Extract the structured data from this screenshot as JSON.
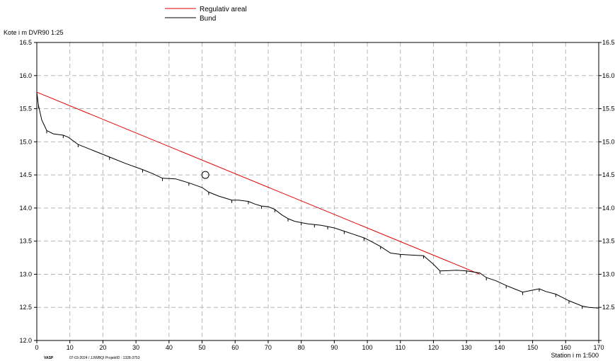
{
  "chart_data": {
    "type": "line",
    "title": "",
    "ylabel": "Kote i m DVR90 1:25",
    "xlabel": "Station i m  1:500",
    "xlim": [
      0,
      170
    ],
    "ylim": [
      12.0,
      16.5
    ],
    "x_ticks": [
      0,
      10,
      20,
      30,
      40,
      50,
      60,
      70,
      80,
      90,
      100,
      110,
      120,
      130,
      140,
      150,
      160,
      170
    ],
    "x_tick_labels": [
      "0",
      "10",
      "20",
      "30",
      "40",
      "50",
      "60",
      "70",
      "80",
      "90",
      "100",
      "110",
      "120",
      "130",
      "140",
      "150",
      "160",
      "170"
    ],
    "y_ticks": [
      12.0,
      12.5,
      13.0,
      13.5,
      14.0,
      14.5,
      15.0,
      15.5,
      16.0,
      16.5
    ],
    "y_tick_labels": [
      "12.0",
      "12.5",
      "13.0",
      "13.5",
      "14.0",
      "14.5",
      "15.0",
      "15.5",
      "16.0",
      "16.5"
    ],
    "y_tick_labels_right": [
      "12.5",
      "13.0",
      "13.5",
      "14.0",
      "14.5",
      "15.0",
      "15.5",
      "16.0",
      "16.5"
    ],
    "grid": true,
    "legend_position": "top-center",
    "series": [
      {
        "name": "Regulativ areal",
        "color": "#e00000",
        "x": [
          0,
          134
        ],
        "y": [
          15.75,
          13.0
        ]
      },
      {
        "name": "Bund",
        "color": "#000000",
        "x": [
          0,
          0.5,
          1.5,
          3,
          5,
          8,
          9.5,
          12.5,
          17,
          22,
          27,
          32,
          35,
          38,
          42,
          46,
          50,
          52,
          55,
          59,
          61,
          64,
          66,
          68,
          70,
          72,
          74,
          76,
          78,
          80,
          82,
          84,
          86,
          88,
          90,
          93,
          96,
          99,
          101,
          104,
          107,
          110,
          113,
          117,
          120,
          122,
          127,
          130,
          134,
          136,
          139,
          142,
          145,
          147,
          150,
          152,
          154,
          157,
          159,
          161,
          163,
          165,
          167,
          170
        ],
        "y": [
          15.75,
          15.55,
          15.33,
          15.17,
          15.12,
          15.1,
          15.07,
          14.96,
          14.87,
          14.77,
          14.67,
          14.58,
          14.52,
          14.45,
          14.44,
          14.38,
          14.31,
          14.24,
          14.18,
          14.12,
          14.12,
          14.1,
          14.06,
          14.03,
          14.02,
          13.98,
          13.9,
          13.84,
          13.8,
          13.78,
          13.76,
          13.75,
          13.74,
          13.72,
          13.7,
          13.65,
          13.6,
          13.55,
          13.5,
          13.42,
          13.32,
          13.3,
          13.29,
          13.28,
          13.15,
          13.05,
          13.06,
          13.05,
          13.02,
          12.95,
          12.9,
          12.83,
          12.77,
          12.73,
          12.76,
          12.78,
          12.74,
          12.7,
          12.65,
          12.6,
          12.56,
          12.52,
          12.5,
          12.49
        ]
      }
    ],
    "annotations": {
      "marker_point": {
        "x": 51,
        "y": 14.5
      },
      "footer_left": "VASP",
      "footer_mid": "07-03-2024 / JJ/WBQI  ProjektID : 1328-3753"
    }
  }
}
